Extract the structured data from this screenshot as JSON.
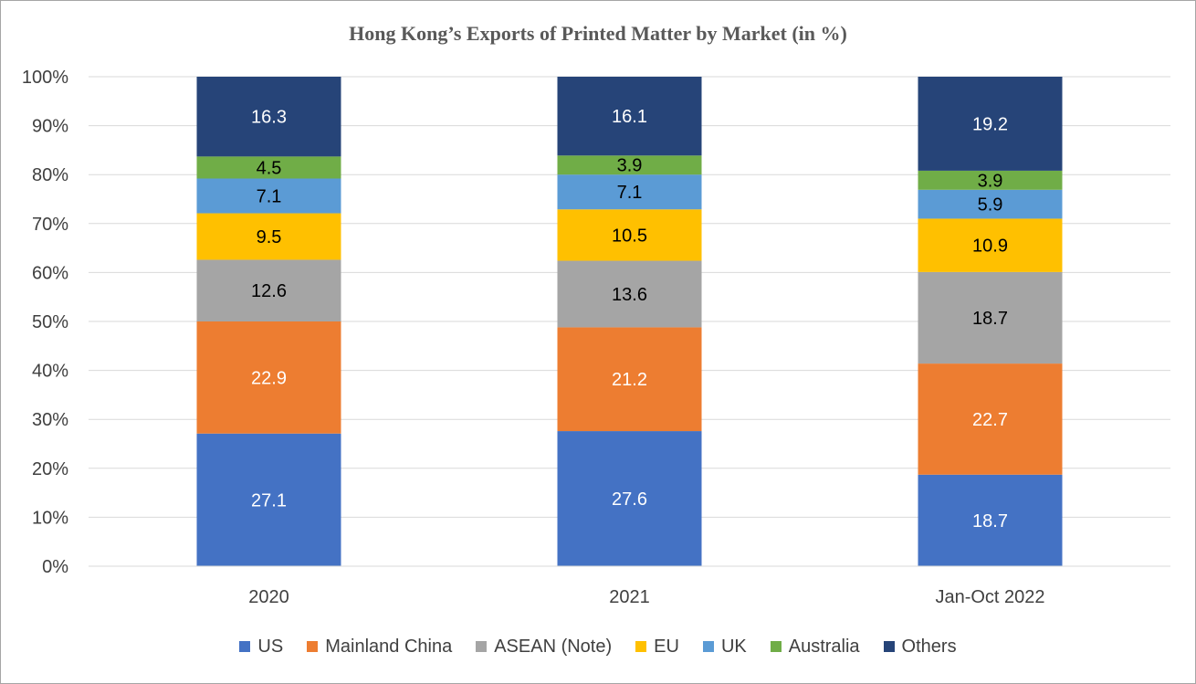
{
  "chart_data": {
    "type": "bar",
    "stacked": true,
    "title": "Hong Kong’s Exports of Printed Matter by Market (in %)",
    "categories": [
      "2020",
      "2021",
      "Jan-Oct 2022"
    ],
    "yticks": [
      "0%",
      "10%",
      "20%",
      "30%",
      "40%",
      "50%",
      "60%",
      "70%",
      "80%",
      "90%",
      "100%"
    ],
    "ylim": [
      0,
      100
    ],
    "grid": true,
    "legend_position": "bottom",
    "series": [
      {
        "name": "US",
        "color": "#4472c4",
        "label_color": "#ffffff",
        "values": [
          27.1,
          27.6,
          18.7
        ]
      },
      {
        "name": "Mainland China",
        "color": "#ed7d31",
        "label_color": "#ffffff",
        "values": [
          22.9,
          21.2,
          22.7
        ]
      },
      {
        "name": "ASEAN (Note)",
        "color": "#a5a5a5",
        "label_color": "#000000",
        "values": [
          12.6,
          13.6,
          18.7
        ]
      },
      {
        "name": "EU",
        "color": "#ffc000",
        "label_color": "#000000",
        "values": [
          9.5,
          10.5,
          10.9
        ]
      },
      {
        "name": "UK",
        "color": "#5b9bd5",
        "label_color": "#000000",
        "values": [
          7.1,
          7.1,
          5.9
        ]
      },
      {
        "name": "Australia",
        "color": "#70ad47",
        "label_color": "#000000",
        "values": [
          4.5,
          3.9,
          3.9
        ]
      },
      {
        "name": "Others",
        "color": "#264478",
        "label_color": "#ffffff",
        "values": [
          16.3,
          16.1,
          19.2
        ]
      }
    ]
  }
}
